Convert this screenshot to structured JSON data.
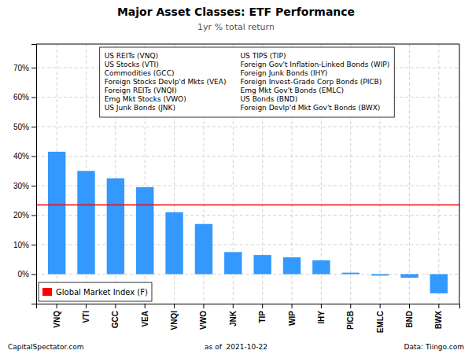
{
  "chart_data": {
    "type": "bar",
    "title": "Major Asset Classes: ETF Performance",
    "subtitle": "1yr % total return",
    "categories": [
      "VNQ",
      "VTI",
      "GCC",
      "VEA",
      "VNQI",
      "VWO",
      "JNK",
      "TIP",
      "WIP",
      "IHY",
      "PICB",
      "EMLC",
      "BND",
      "BWX"
    ],
    "values": [
      41.5,
      35.0,
      32.5,
      29.5,
      21.0,
      17.0,
      7.5,
      6.5,
      5.7,
      4.7,
      0.5,
      -0.5,
      -1.2,
      -6.5
    ],
    "color": "#3399FF",
    "ylim": [
      -10,
      78
    ],
    "yticks": [
      {
        "value": 0,
        "label": "0%"
      },
      {
        "value": 10,
        "label": "10%"
      },
      {
        "value": 20,
        "label": "20%"
      },
      {
        "value": 30,
        "label": "30%"
      },
      {
        "value": 40,
        "label": "40%"
      },
      {
        "value": 50,
        "label": "50%"
      },
      {
        "value": 60,
        "label": "60%"
      },
      {
        "value": 70,
        "label": "70%"
      }
    ],
    "grid": true,
    "legend": "lower left",
    "reference_lines": [
      {
        "name": "Global Market Index (F)",
        "value": 23.5,
        "color": "#FF0000"
      }
    ],
    "annotation_columns": [
      [
        "US REITs (VNQ)",
        "US Stocks (VTI)",
        "Commodities (GCC)",
        "Foreign Stocks Devlp'd Mkts (VEA)",
        "Foreign REITs (VNQI)",
        "Emg Mkt Stocks (VWO)",
        "US Junk Bonds (JNK)"
      ],
      [
        "US TIPS (TIP)",
        "Foreign Gov't Inflation-Linked Bonds (WIP)",
        "Foreign Junk Bonds (IHY)",
        "Foreign Invest-Grade Corp Bonds (PICB)",
        "Emg Mkt Gov't Bonds (EMLC)",
        "US Bonds (BND)",
        "Foreign Devlp'd Mkt Gov't Bonds (BWX)"
      ]
    ],
    "footer": [
      "CapitalSpectator.com",
      "as of  2021-10-22",
      "Data: Tiingo.com"
    ]
  }
}
